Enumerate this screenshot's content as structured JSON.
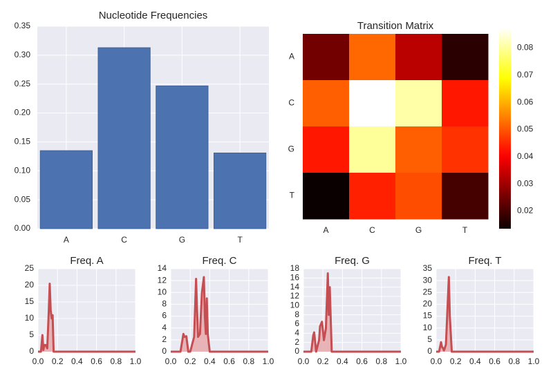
{
  "chart_data": [
    {
      "type": "bar",
      "title": "Nucleotide Frequencies",
      "xlabel": "",
      "ylabel": "",
      "categories": [
        "A",
        "C",
        "G",
        "T"
      ],
      "values": [
        0.135,
        0.313,
        0.247,
        0.131
      ],
      "ylim": [
        0,
        0.35
      ],
      "yticks": [
        0.0,
        0.05,
        0.1,
        0.15,
        0.2,
        0.25,
        0.3,
        0.35
      ],
      "ytick_labels": [
        "0.00",
        "0.05",
        "0.10",
        "0.15",
        "0.20",
        "0.25",
        "0.30",
        "0.35"
      ],
      "bar_color": "#4c72b0",
      "grid": true
    },
    {
      "type": "heatmap",
      "title": "Transition Matrix",
      "row_labels": [
        "A",
        "C",
        "G",
        "T"
      ],
      "col_labels": [
        "A",
        "C",
        "G",
        "T"
      ],
      "values": [
        [
          0.025,
          0.052,
          0.033,
          0.017
        ],
        [
          0.051,
          0.088,
          0.081,
          0.043
        ],
        [
          0.043,
          0.08,
          0.051,
          0.046
        ],
        [
          0.013,
          0.044,
          0.049,
          0.02
        ]
      ],
      "colormap": "hot",
      "colorbar_range": [
        0.0135,
        0.0875
      ],
      "colorbar_ticks": [
        0.02,
        0.03,
        0.04,
        0.05,
        0.06,
        0.07,
        0.08
      ],
      "colorbar_tick_labels": [
        "0.02",
        "0.03",
        "0.04",
        "0.05",
        "0.06",
        "0.07",
        "0.08"
      ]
    },
    {
      "type": "area",
      "title": "Freq. A",
      "xlim": [
        0,
        1
      ],
      "ylim": [
        0,
        25
      ],
      "xticks": [
        0.0,
        0.2,
        0.4,
        0.6,
        0.8,
        1.0
      ],
      "xtick_labels": [
        "0.0",
        "0.2",
        "0.4",
        "0.6",
        "0.8",
        "1.0"
      ],
      "yticks": [
        0,
        5,
        10,
        15,
        20,
        25
      ],
      "ytick_labels": [
        "0",
        "5",
        "10",
        "15",
        "20",
        "25"
      ],
      "x": [
        0.0,
        0.03,
        0.045,
        0.055,
        0.065,
        0.08,
        0.095,
        0.11,
        0.12,
        0.13,
        0.14,
        0.15,
        0.16,
        0.17,
        0.2,
        1.0
      ],
      "y": [
        0,
        0,
        5,
        0.5,
        2,
        2,
        1,
        12,
        20.5,
        12.5,
        10,
        11,
        0,
        0,
        0,
        0
      ],
      "line_color": "#c44e52",
      "fill_color": "#e8a9ab"
    },
    {
      "type": "area",
      "title": "Freq. C",
      "xlim": [
        0,
        1
      ],
      "ylim": [
        0,
        14
      ],
      "xticks": [
        0.0,
        0.2,
        0.4,
        0.6,
        0.8,
        1.0
      ],
      "xtick_labels": [
        "0.0",
        "0.2",
        "0.4",
        "0.6",
        "0.8",
        "1.0"
      ],
      "yticks": [
        0,
        2,
        4,
        6,
        8,
        10,
        12,
        14
      ],
      "ytick_labels": [
        "0",
        "2",
        "4",
        "6",
        "8",
        "10",
        "12",
        "14"
      ],
      "x": [
        0.0,
        0.1,
        0.13,
        0.14,
        0.16,
        0.18,
        0.2,
        0.24,
        0.26,
        0.27,
        0.28,
        0.3,
        0.32,
        0.34,
        0.35,
        0.36,
        0.37,
        0.38,
        0.4,
        1.0
      ],
      "y": [
        0,
        0,
        3,
        2.5,
        2.6,
        0,
        0,
        2.5,
        12.3,
        7,
        2.5,
        3,
        10,
        12.6,
        6,
        3,
        9,
        3,
        0,
        0
      ],
      "line_color": "#c44e52",
      "fill_color": "#e8a9ab"
    },
    {
      "type": "area",
      "title": "Freq. G",
      "xlim": [
        0,
        1
      ],
      "ylim": [
        0,
        18
      ],
      "xticks": [
        0.0,
        0.2,
        0.4,
        0.6,
        0.8,
        1.0
      ],
      "xtick_labels": [
        "0.0",
        "0.2",
        "0.4",
        "0.6",
        "0.8",
        "1.0"
      ],
      "yticks": [
        0,
        2,
        4,
        6,
        8,
        10,
        12,
        14,
        16,
        18
      ],
      "ytick_labels": [
        "0",
        "2",
        "4",
        "6",
        "8",
        "10",
        "12",
        "14",
        "16",
        "18"
      ],
      "x": [
        0.0,
        0.08,
        0.1,
        0.11,
        0.13,
        0.16,
        0.17,
        0.19,
        0.21,
        0.23,
        0.25,
        0.26,
        0.27,
        0.29,
        0.32,
        1.0
      ],
      "y": [
        0,
        0,
        3.5,
        4.2,
        0,
        2.5,
        5.5,
        6.5,
        2.5,
        5,
        17,
        8,
        14,
        0,
        0,
        0
      ],
      "line_color": "#c44e52",
      "fill_color": "#e8a9ab"
    },
    {
      "type": "area",
      "title": "Freq. T",
      "xlim": [
        0,
        1
      ],
      "ylim": [
        0,
        35
      ],
      "xticks": [
        0.0,
        0.2,
        0.4,
        0.6,
        0.8,
        1.0
      ],
      "xtick_labels": [
        "0.0",
        "0.2",
        "0.4",
        "0.6",
        "0.8",
        "1.0"
      ],
      "yticks": [
        0,
        5,
        10,
        15,
        20,
        25,
        30,
        35
      ],
      "ytick_labels": [
        "0",
        "5",
        "10",
        "15",
        "20",
        "25",
        "30",
        "35"
      ],
      "x": [
        0.0,
        0.03,
        0.05,
        0.06,
        0.07,
        0.08,
        0.1,
        0.12,
        0.13,
        0.14,
        0.16,
        1.0
      ],
      "y": [
        0,
        0,
        4,
        2,
        1.5,
        0.5,
        3,
        22,
        31.5,
        15,
        0,
        0
      ],
      "line_color": "#c44e52",
      "fill_color": "#e8a9ab"
    }
  ]
}
